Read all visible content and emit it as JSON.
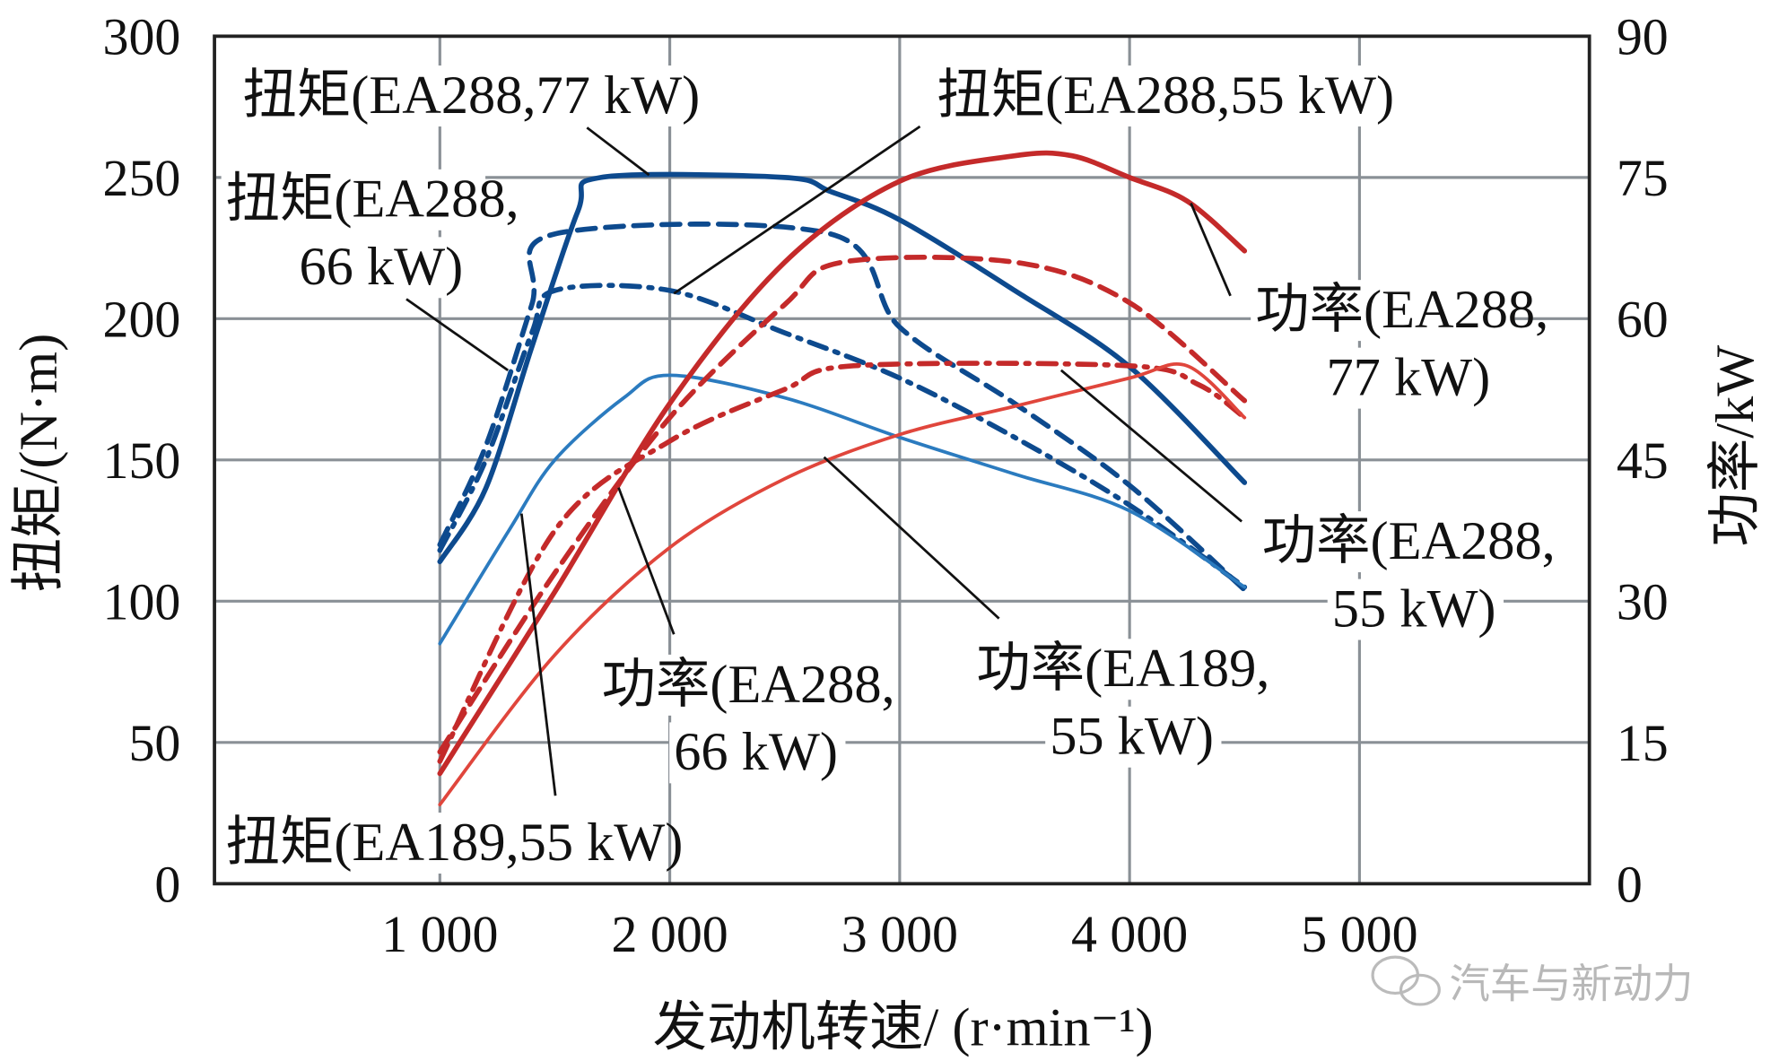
{
  "chart_data": {
    "type": "line",
    "xlabel": "发动机转速/ (r·min⁻¹)",
    "ylabel": "扭矩/(N·m)",
    "y2label": "功率/kW",
    "xlim": [
      0,
      6000
    ],
    "ylim": [
      0,
      300
    ],
    "y2lim": [
      0,
      90
    ],
    "xticks": [
      1000,
      2000,
      3000,
      4000,
      5000
    ],
    "xtick_labels": [
      "1 000",
      "2 000",
      "3 000",
      "4 000",
      "5 000"
    ],
    "yticks": [
      0,
      50,
      100,
      150,
      200,
      250,
      300
    ],
    "ytick_labels": [
      "0",
      "50",
      "100",
      "150",
      "200",
      "250",
      "300"
    ],
    "y2ticks": [
      0,
      15,
      30,
      45,
      60,
      75,
      90
    ],
    "y2tick_labels": [
      "0",
      "15",
      "30",
      "45",
      "60",
      "75",
      "90"
    ],
    "grid": true,
    "series": [
      {
        "name": "扭矩(EA288,77 kW)",
        "axis": "left",
        "color": "#0d4a8e",
        "style": "solid",
        "weight": "thick",
        "x": [
          1000,
          1200,
          1400,
          1600,
          1700,
          2500,
          2700,
          3000,
          3500,
          4000,
          4500
        ],
        "y": [
          114,
          140,
          190,
          238,
          250,
          250,
          245,
          235,
          210,
          183,
          142
        ]
      },
      {
        "name": "扭矩(EA288,66 kW)",
        "axis": "left",
        "color": "#0d4a8e",
        "style": "dashed",
        "weight": "thick",
        "x": [
          1000,
          1200,
          1400,
          1500,
          2700,
          3000,
          3500,
          4000,
          4500
        ],
        "y": [
          120,
          155,
          205,
          230,
          230,
          197,
          170,
          141,
          104
        ]
      },
      {
        "name": "扭矩(EA288,55 kW)",
        "axis": "left",
        "color": "#0d4a8e",
        "style": "dashdot",
        "weight": "thick",
        "x": [
          1000,
          1200,
          1400,
          1500,
          2000,
          2500,
          3000,
          3500,
          4000,
          4500
        ],
        "y": [
          118,
          150,
          195,
          210,
          210,
          195,
          179,
          158,
          134,
          105
        ]
      },
      {
        "name": "扭矩(EA189,55 kW)",
        "axis": "left",
        "color": "#2b7bbf",
        "style": "solid",
        "weight": "thin",
        "x": [
          1000,
          1300,
          1500,
          1800,
          2000,
          2500,
          3000,
          3500,
          4000,
          4500
        ],
        "y": [
          85,
          125,
          150,
          172,
          180,
          172,
          158,
          145,
          132,
          105
        ]
      },
      {
        "name": "功率(EA288,77 kW)",
        "axis": "right",
        "color": "#c42a2a",
        "style": "solid",
        "weight": "thick",
        "x": [
          1000,
          1500,
          2000,
          2500,
          3000,
          3500,
          3750,
          4000,
          4250,
          4500
        ],
        "y": [
          11.7,
          31,
          51,
          66,
          74.6,
          77.3,
          77.3,
          75,
          72.5,
          67.2
        ]
      },
      {
        "name": "功率(EA288,66 kW)",
        "axis": "right",
        "color": "#c42a2a",
        "style": "dashed",
        "weight": "thick",
        "x": [
          1000,
          1500,
          2000,
          2500,
          2750,
          3500,
          4000,
          4500
        ],
        "y": [
          14,
          33,
          49.5,
          61.5,
          66,
          66,
          61.7,
          51.3
        ]
      },
      {
        "name": "功率(EA288,55 kW)",
        "axis": "right",
        "color": "#c42a2a",
        "style": "dashdot",
        "weight": "thick",
        "x": [
          1000,
          1500,
          2000,
          2500,
          2800,
          4000,
          4300,
          4500
        ],
        "y": [
          13,
          37.5,
          47,
          52.5,
          55,
          55,
          53,
          49.5
        ]
      },
      {
        "name": "功率(EA189,55 kW)",
        "axis": "right",
        "color": "#e0463c",
        "style": "solid",
        "weight": "thin",
        "x": [
          1000,
          1500,
          2000,
          2500,
          3000,
          3500,
          4000,
          4250,
          4500
        ],
        "y": [
          8.4,
          24.3,
          35.7,
          43,
          47.7,
          50.7,
          53.7,
          55,
          49.5
        ]
      }
    ],
    "annotations": [
      {
        "lines": [
          "扭矩(EA288,77 kW)"
        ]
      },
      {
        "lines": [
          "扭矩(EA288,55 kW)"
        ]
      },
      {
        "lines": [
          "扭矩(EA288,",
          "66 kW)"
        ]
      },
      {
        "lines": [
          "扭矩(EA189,55 kW)"
        ]
      },
      {
        "lines": [
          "功率(EA288,",
          "77 kW)"
        ]
      },
      {
        "lines": [
          "功率(EA288,",
          "55 kW)"
        ]
      },
      {
        "lines": [
          "功率(EA288,",
          "66 kW)"
        ]
      },
      {
        "lines": [
          "功率(EA189,",
          "55 kW)"
        ]
      }
    ]
  },
  "watermark": {
    "text": "汽车与新动力",
    "icon": "wechat-icon"
  }
}
